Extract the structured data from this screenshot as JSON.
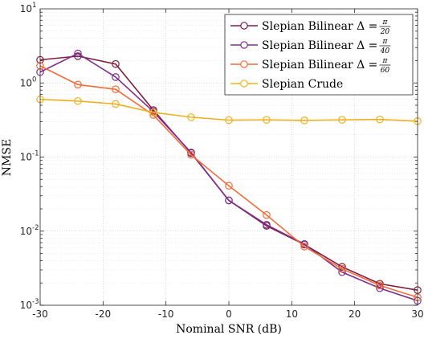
{
  "chart_data": {
    "type": "line",
    "xlabel": "Nominal SNR (dB)",
    "ylabel": "NMSE",
    "x_scale": "linear",
    "y_scale": "log",
    "xlim": [
      -30,
      30
    ],
    "ylim": [
      0.001,
      10
    ],
    "x_ticks": [
      -30,
      -20,
      -10,
      0,
      10,
      20,
      30
    ],
    "x_tick_labels": [
      "-30",
      "-20",
      "-10",
      "0",
      "10",
      "20",
      "30"
    ],
    "y_ticks": [
      {
        "value": 0.001,
        "base": "10",
        "exp": "-3"
      },
      {
        "value": 0.01,
        "base": "10",
        "exp": "-2"
      },
      {
        "value": 0.1,
        "base": "10",
        "exp": "-1"
      },
      {
        "value": 1,
        "base": "10",
        "exp": "0"
      },
      {
        "value": 10,
        "base": "10",
        "exp": "1"
      }
    ],
    "grid": true,
    "legend_position": "top-right",
    "series": [
      {
        "name": "Slepian Bilinear Δ =",
        "frac_num": "π",
        "frac_den": "20",
        "color": "#7e1e3a",
        "x": [
          -30,
          -24,
          -18,
          -12,
          -6,
          0,
          6,
          12,
          18,
          24,
          30
        ],
        "y": [
          2.05,
          2.3,
          1.8,
          0.43,
          0.113,
          0.026,
          0.0118,
          0.0066,
          0.0033,
          0.00195,
          0.0016
        ]
      },
      {
        "name": "Slepian Bilinear Δ =",
        "frac_num": "π",
        "frac_den": "40",
        "color": "#7e2f8e",
        "x": [
          -30,
          -24,
          -18,
          -12,
          -6,
          0,
          6,
          12,
          18,
          24,
          30
        ],
        "y": [
          1.4,
          2.5,
          1.2,
          0.41,
          0.115,
          0.026,
          0.0122,
          0.0067,
          0.0028,
          0.0017,
          0.00115
        ]
      },
      {
        "name": "Slepian Bilinear Δ =",
        "frac_num": "π",
        "frac_den": "60",
        "color": "#f26b38",
        "x": [
          -30,
          -24,
          -18,
          -12,
          -6,
          0,
          6,
          12,
          18,
          24,
          30
        ],
        "y": [
          1.7,
          0.95,
          0.82,
          0.37,
          0.107,
          0.041,
          0.0165,
          0.0062,
          0.0031,
          0.00185,
          0.00128
        ]
      },
      {
        "name": "Slepian Crude",
        "color": "#edb120",
        "x": [
          -30,
          -24,
          -18,
          -12,
          -6,
          0,
          6,
          12,
          18,
          24,
          30
        ],
        "y": [
          0.6,
          0.57,
          0.52,
          0.4,
          0.345,
          0.315,
          0.318,
          0.312,
          0.318,
          0.322,
          0.305
        ]
      }
    ]
  }
}
